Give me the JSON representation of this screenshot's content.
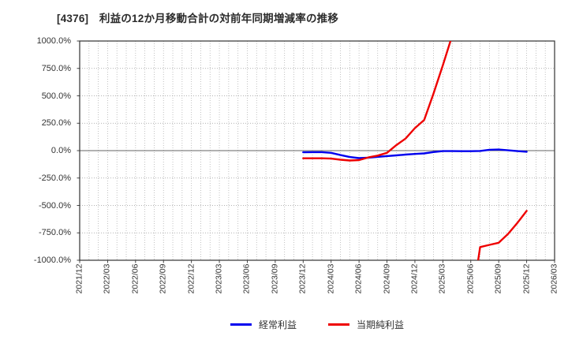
{
  "chart_data": {
    "type": "line",
    "title": "[4376]　利益の12か月移動合計の対前年同期増減率の推移",
    "x_axis": {
      "start": "2021/12",
      "end": "2026/03",
      "months_total": 51,
      "tick_month_offsets": [
        0,
        3,
        6,
        9,
        12,
        15,
        18,
        21,
        24,
        27,
        30,
        33,
        36,
        39,
        42,
        45,
        48,
        51
      ],
      "tick_labels": [
        "2021/12",
        "2022/03",
        "2022/06",
        "2022/09",
        "2022/12",
        "2023/03",
        "2023/06",
        "2023/09",
        "2023/12",
        "2024/03",
        "2024/06",
        "2024/09",
        "2024/12",
        "2025/03",
        "2025/06",
        "2025/09",
        "2025/12",
        "2026/03"
      ]
    },
    "y_axis": {
      "min": -1000,
      "max": 1000,
      "unit": "%",
      "tick_values": [
        1000,
        750,
        500,
        250,
        0,
        -250,
        -500,
        -750,
        -1000
      ],
      "tick_labels": [
        "1000.0%",
        "750.0%",
        "500.0%",
        "250.0%",
        "0.0%",
        "-250.0%",
        "-500.0%",
        "-750.0%",
        "-1000.0%"
      ]
    },
    "grid": true,
    "legend_position": "bottom",
    "data_months": [
      "2023/12",
      "2024/01",
      "2024/02",
      "2024/03",
      "2024/04",
      "2024/05",
      "2024/06",
      "2024/07",
      "2024/08",
      "2024/09",
      "2024/10",
      "2024/11",
      "2024/12",
      "2025/01",
      "2025/02",
      "2025/03",
      "2025/04",
      "2025/05",
      "2025/06",
      "2025/07",
      "2025/08",
      "2025/09",
      "2025/10",
      "2025/11",
      "2025/12"
    ],
    "series": [
      {
        "key": "ordinary-profit",
        "name": "経常利益",
        "color": "#0000ee",
        "start_month_offset": 24,
        "monthly_values_pct": [
          -15,
          -14,
          -14,
          -20,
          -40,
          -58,
          -68,
          -64,
          -57,
          -50,
          -43,
          -36,
          -30,
          -25,
          -13,
          -4,
          -4,
          -5,
          -5,
          -3,
          8,
          10,
          3,
          -4,
          -10
        ]
      },
      {
        "key": "net-profit",
        "name": "当期純利益",
        "color": "#ee0000",
        "start_month_offset": 24,
        "monthly_values_pct": [
          -70,
          -70,
          -70,
          -73,
          -83,
          -90,
          -86,
          -62,
          -45,
          -20,
          50,
          110,
          205,
          280,
          520,
          780,
          1050,
          null,
          -1450,
          -880,
          -860,
          -840,
          -760,
          -660,
          -550
        ]
      }
    ]
  }
}
